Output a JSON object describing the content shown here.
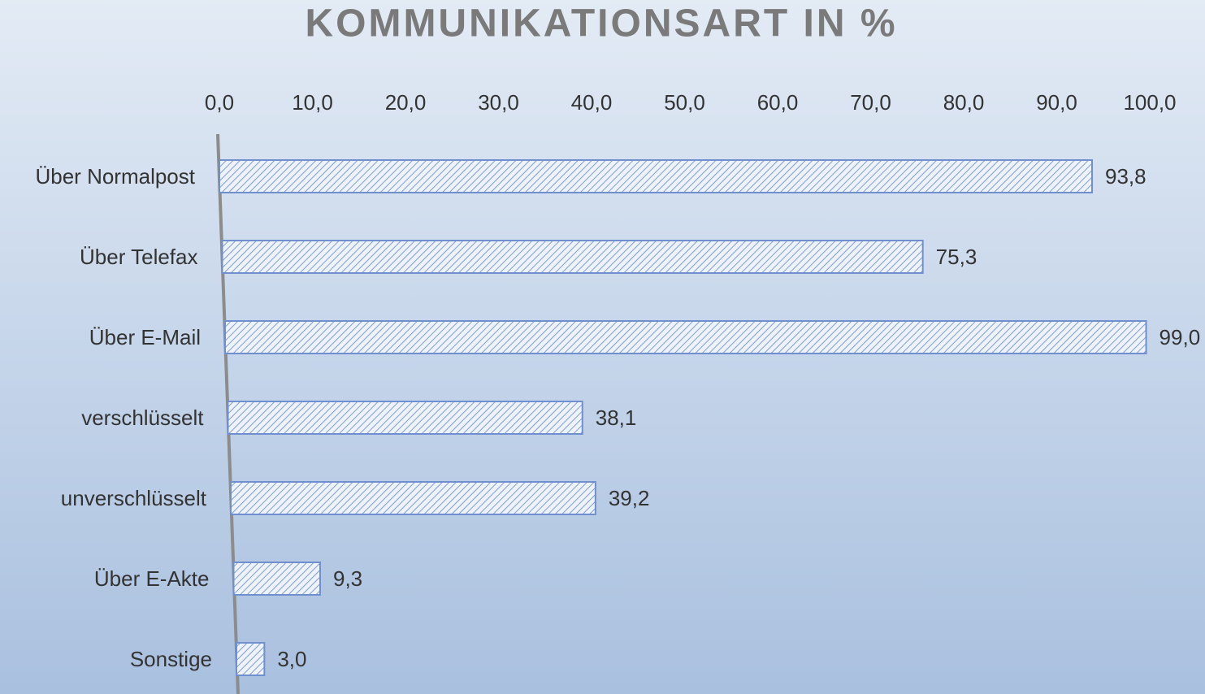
{
  "chart_data": {
    "type": "hbar",
    "title": "KOMMUNIKATIONSART IN %",
    "categories": [
      "Über Normalpost",
      "Über Telefax",
      "Über E-Mail",
      "verschlüsselt",
      "unverschlüsselt",
      "Über E-Akte",
      "Sonstige"
    ],
    "values": [
      93.8,
      75.3,
      99.0,
      38.1,
      39.2,
      9.3,
      3.0
    ],
    "value_labels": [
      "93,8",
      "75,3",
      "99,0",
      "38,1",
      "39,2",
      "9,3",
      "3,0"
    ],
    "color": "#6f8fcf",
    "xlim": [
      0,
      100
    ],
    "xticks": [
      {
        "value": 0,
        "label": "0,0"
      },
      {
        "value": 10,
        "label": "10,0"
      },
      {
        "value": 20,
        "label": "20,0"
      },
      {
        "value": 30,
        "label": "30,0"
      },
      {
        "value": 40,
        "label": "40,0"
      },
      {
        "value": 50,
        "label": "50,0"
      },
      {
        "value": 60,
        "label": "60,0"
      },
      {
        "value": 70,
        "label": "70,0"
      },
      {
        "value": 80,
        "label": "80,0"
      },
      {
        "value": 90,
        "label": "90,0"
      },
      {
        "value": 100,
        "label": "100,0"
      }
    ]
  }
}
